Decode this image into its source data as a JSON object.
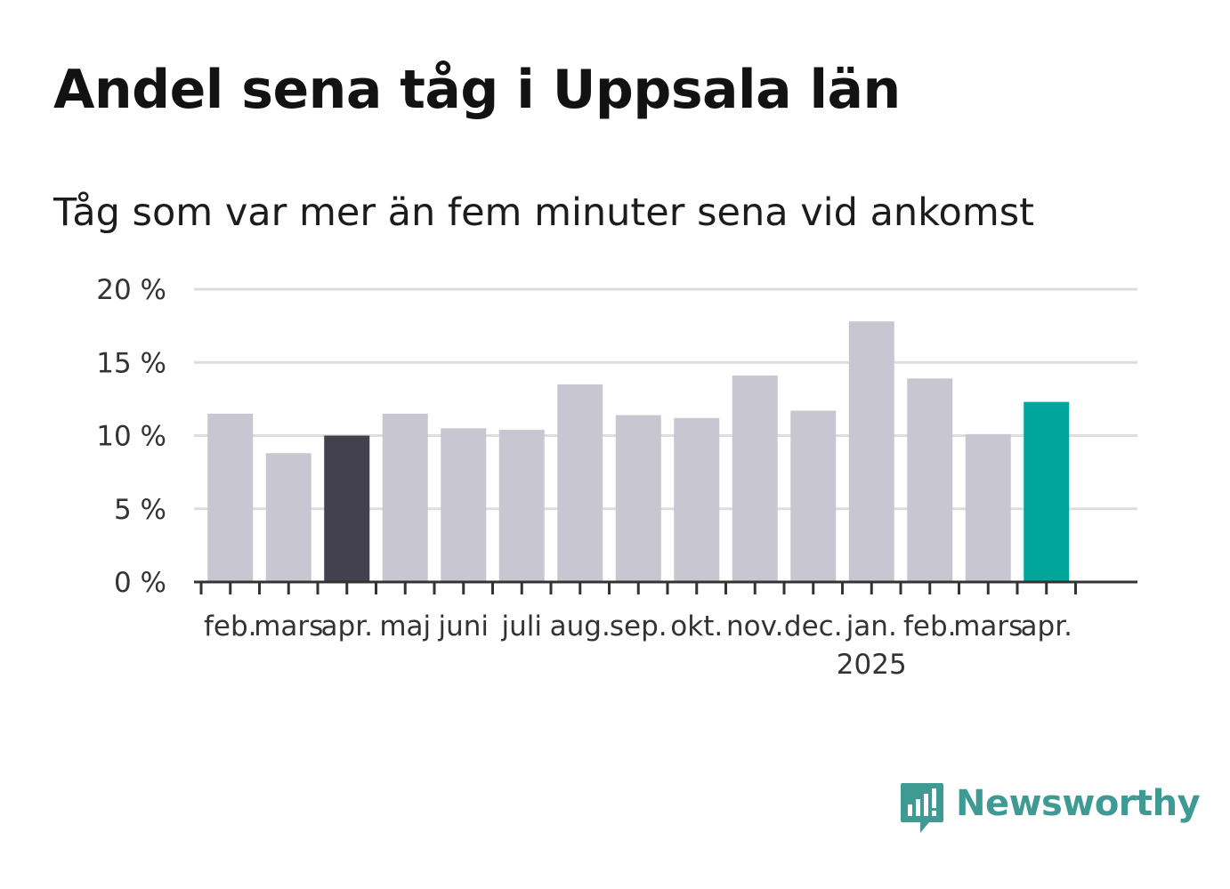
{
  "header": {
    "title": "Andel sena tåg i Uppsala län",
    "subtitle": "Tåg som var mer än fem minuter sena vid ankomst"
  },
  "brand": {
    "name": "Newsworthy",
    "logo_icon": "bar-chart-speech-bubble-icon",
    "color": "#3e9a92"
  },
  "colors": {
    "default_bar": "#c8c7d1",
    "highlight_past": "#42414d",
    "highlight_current": "#00a59b",
    "gridline": "#dddddd",
    "axis": "#333333"
  },
  "chart_data": {
    "type": "bar",
    "categories": [
      "feb.",
      "mars",
      "apr.",
      "maj",
      "juni",
      "juli",
      "aug.",
      "sep.",
      "okt.",
      "nov.",
      "dec.",
      "jan.",
      "feb.",
      "mars",
      "apr."
    ],
    "year_labels": [
      {
        "index": 11,
        "label": "2025"
      }
    ],
    "values": [
      11.5,
      8.8,
      10.0,
      11.5,
      10.5,
      10.4,
      13.5,
      11.4,
      11.2,
      14.1,
      11.7,
      17.8,
      13.9,
      10.1,
      12.3
    ],
    "highlights": {
      "2": "past",
      "14": "current"
    },
    "ylim": [
      0,
      20
    ],
    "yticks": [
      0,
      5,
      10,
      15,
      20
    ],
    "ytick_labels": [
      "0 %",
      "5 %",
      "10 %",
      "15 %",
      "20 %"
    ],
    "title": "",
    "xlabel": "",
    "ylabel": "",
    "grid": true
  }
}
